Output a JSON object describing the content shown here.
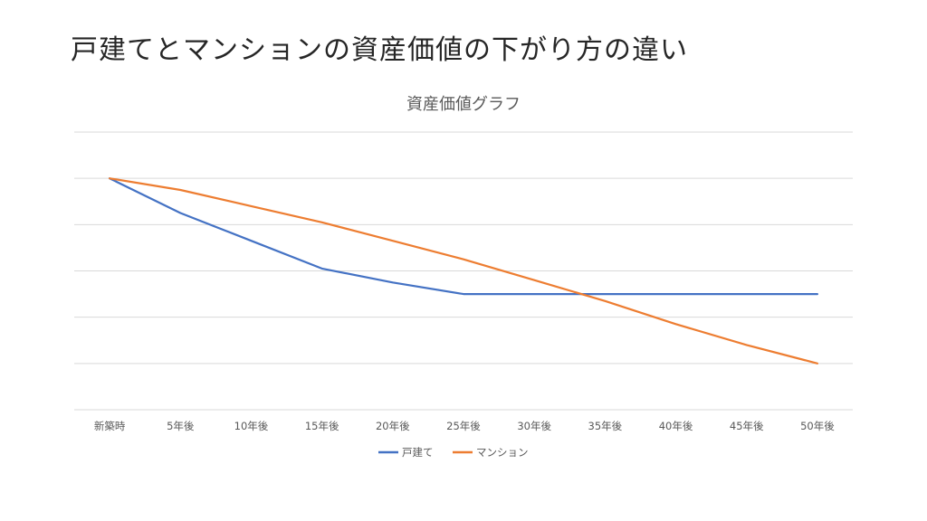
{
  "slide": {
    "title": "戸建てとマンションの資産価値の下がり方の違い"
  },
  "chart_data": {
    "type": "line",
    "title": "資産価値グラフ",
    "categories": [
      "新築時",
      "5年後",
      "10年後",
      "15年後",
      "20年後",
      "25年後",
      "30年後",
      "35年後",
      "40年後",
      "45年後",
      "50年後"
    ],
    "series": [
      {
        "name": "戸建て",
        "color": "#4472c4",
        "values": [
          100,
          85,
          73,
          61,
          55,
          50,
          50,
          50,
          50,
          50,
          50
        ]
      },
      {
        "name": "マンション",
        "color": "#ed7d31",
        "values": [
          100,
          95,
          88,
          81,
          73,
          65,
          56,
          47,
          37,
          28,
          20
        ]
      }
    ],
    "ylim": [
      0,
      120
    ],
    "ystep": 20,
    "y_tick_labels_shown": false,
    "grid": true,
    "legend_position": "bottom"
  }
}
